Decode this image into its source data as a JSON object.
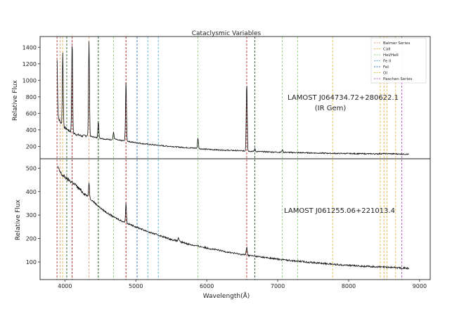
{
  "chart_data": {
    "type": "line",
    "title": "Cataclysmic Variables",
    "xlabel": "Wavelength(Å)",
    "xlim": [
      3650,
      9150
    ],
    "x_ticks": [
      4000,
      5000,
      6000,
      7000,
      8000,
      9000
    ],
    "grid": false,
    "legend_placement": "top-right",
    "legend": [
      {
        "label": "Balmer Series",
        "color": "#e8a07a"
      },
      {
        "label": "CaII",
        "color": "#e8b84a"
      },
      {
        "label": "HeI/HeII",
        "color": "#8fd07a"
      },
      {
        "label": "Fe II",
        "color": "#5ab4d8"
      },
      {
        "label": "FeI",
        "color": "#3a6fb0"
      },
      {
        "label": "OI",
        "color": "#d8c040"
      },
      {
        "label": "Paschen Series",
        "color": "#b050c0"
      }
    ],
    "line_markers": [
      {
        "group": "Balmer Series",
        "color": "#e8a07a",
        "x": [
          3934,
          4102,
          4340,
          4861
        ]
      },
      {
        "group": "CaII",
        "color": "#e8b84a",
        "x": [
          3968,
          8498,
          8542,
          8662
        ]
      },
      {
        "group": "HeI/HeII",
        "color": "#8fd07a",
        "x": [
          4471,
          4686,
          5876,
          7065,
          7281
        ]
      },
      {
        "group": "Fe II",
        "color": "#5ab4d8",
        "x": [
          5169,
          5317
        ]
      },
      {
        "group": "FeI",
        "color": "#3a6fb0",
        "x": [
          5018
        ]
      },
      {
        "group": "OI",
        "color": "#d8c040",
        "x": [
          7774,
          8446
        ]
      },
      {
        "group": "Paschen Series",
        "color": "#b050c0",
        "x": [
          8750
        ]
      },
      {
        "group": "Emission",
        "color": "#b03030",
        "x": [
          3889,
          4102,
          4861,
          6563
        ]
      },
      {
        "group": "Other",
        "color": "#2a5a2a",
        "x": [
          4026,
          4471,
          6678
        ]
      }
    ],
    "panels": [
      {
        "name": "top",
        "ylabel": "Relative Flux",
        "ylim": [
          50,
          1530
        ],
        "y_ticks": [
          200,
          400,
          600,
          800,
          1000,
          1200,
          1400
        ],
        "annotation": [
          "LAMOST J064734.72+280622.1",
          "(IR Gem)"
        ],
        "series": [
          {
            "x": [
              3890,
              3900,
              3920,
              3950,
              3970,
              3990,
              4010,
              4040,
              4080,
              4100,
              4120,
              4160,
              4200,
              4250,
              4300,
              4330,
              4360,
              4400,
              4450,
              4500,
              4550,
              4600,
              4650,
              4700,
              4750,
              4800,
              4850,
              4880,
              4920,
              4960,
              5000,
              5050,
              5100,
              5150,
              5200,
              5300,
              5400,
              5500,
              5600,
              5700,
              5800,
              5860,
              5900,
              5950,
              6000,
              6100,
              6200,
              6300,
              6400,
              6500,
              6540,
              6600,
              6650,
              6700,
              6800,
              6900,
              7000,
              7100,
              7200,
              7300,
              7400,
              7500,
              7600,
              7700,
              7800,
              7900,
              8000,
              8100,
              8200,
              8300,
              8400,
              8500,
              8600,
              8700,
              8800,
              8850
            ],
            "y": [
              560,
              580,
              520,
              470,
              440,
              430,
              420,
              400,
              380,
              370,
              360,
              345,
              335,
              325,
              330,
              335,
              320,
              315,
              305,
              300,
              290,
              285,
              282,
              290,
              275,
              270,
              268,
              265,
              255,
              250,
              245,
              240,
              232,
              228,
              222,
              215,
              205,
              200,
              192,
              185,
              180,
              178,
              172,
              168,
              165,
              160,
              156,
              152,
              150,
              146,
              144,
              142,
              140,
              138,
              135,
              132,
              130,
              128,
              126,
              124,
              122,
              120,
              118,
              117,
              115,
              114,
              113,
              112,
              111,
              110,
              110,
              112,
              110,
              108,
              106,
              104
            ]
          }
        ],
        "peaks": [
          {
            "x": 3889,
            "y": 800
          },
          {
            "x": 3970,
            "y": 1330
          },
          {
            "x": 4102,
            "y": 1480
          },
          {
            "x": 4340,
            "y": 1480
          },
          {
            "x": 4471,
            "y": 500
          },
          {
            "x": 4686,
            "y": 370
          },
          {
            "x": 4861,
            "y": 980
          },
          {
            "x": 5876,
            "y": 300
          },
          {
            "x": 6563,
            "y": 975
          },
          {
            "x": 6678,
            "y": 170
          },
          {
            "x": 7065,
            "y": 160
          }
        ]
      },
      {
        "name": "bottom",
        "ylabel": "Relative Flux",
        "ylim": [
          25,
          540
        ],
        "y_ticks": [
          100,
          200,
          300,
          400,
          500
        ],
        "annotation": [
          "LAMOST J061255.06+221013.4"
        ],
        "series": [
          {
            "x": [
              3900,
              3920,
              3960,
              4000,
              4050,
              4100,
              4150,
              4200,
              4300,
              4400,
              4500,
              4600,
              4700,
              4800,
              4900,
              5000,
              5100,
              5200,
              5300,
              5400,
              5500,
              5600,
              5700,
              5800,
              5900,
              6000,
              6100,
              6200,
              6300,
              6400,
              6500,
              6600,
              6700,
              6800,
              6900,
              7000,
              7200,
              7400,
              7600,
              7800,
              8000,
              8200,
              8400,
              8600,
              8800,
              8850
            ],
            "y": [
              505,
              490,
              470,
              462,
              450,
              440,
              428,
              412,
              385,
              358,
              330,
              308,
              290,
              275,
              262,
              250,
              238,
              226,
              216,
              206,
              196,
              188,
              180,
              172,
              166,
              160,
              154,
              148,
              142,
              137,
              132,
              128,
              124,
              120,
              116,
              112,
              106,
              100,
              95,
              90,
              86,
              82,
              79,
              77,
              74,
              72
            ]
          }
        ],
        "peaks": [
          {
            "x": 4340,
            "y": 440
          },
          {
            "x": 4861,
            "y": 350
          },
          {
            "x": 5600,
            "y": 205
          },
          {
            "x": 6563,
            "y": 165
          }
        ]
      }
    ]
  }
}
